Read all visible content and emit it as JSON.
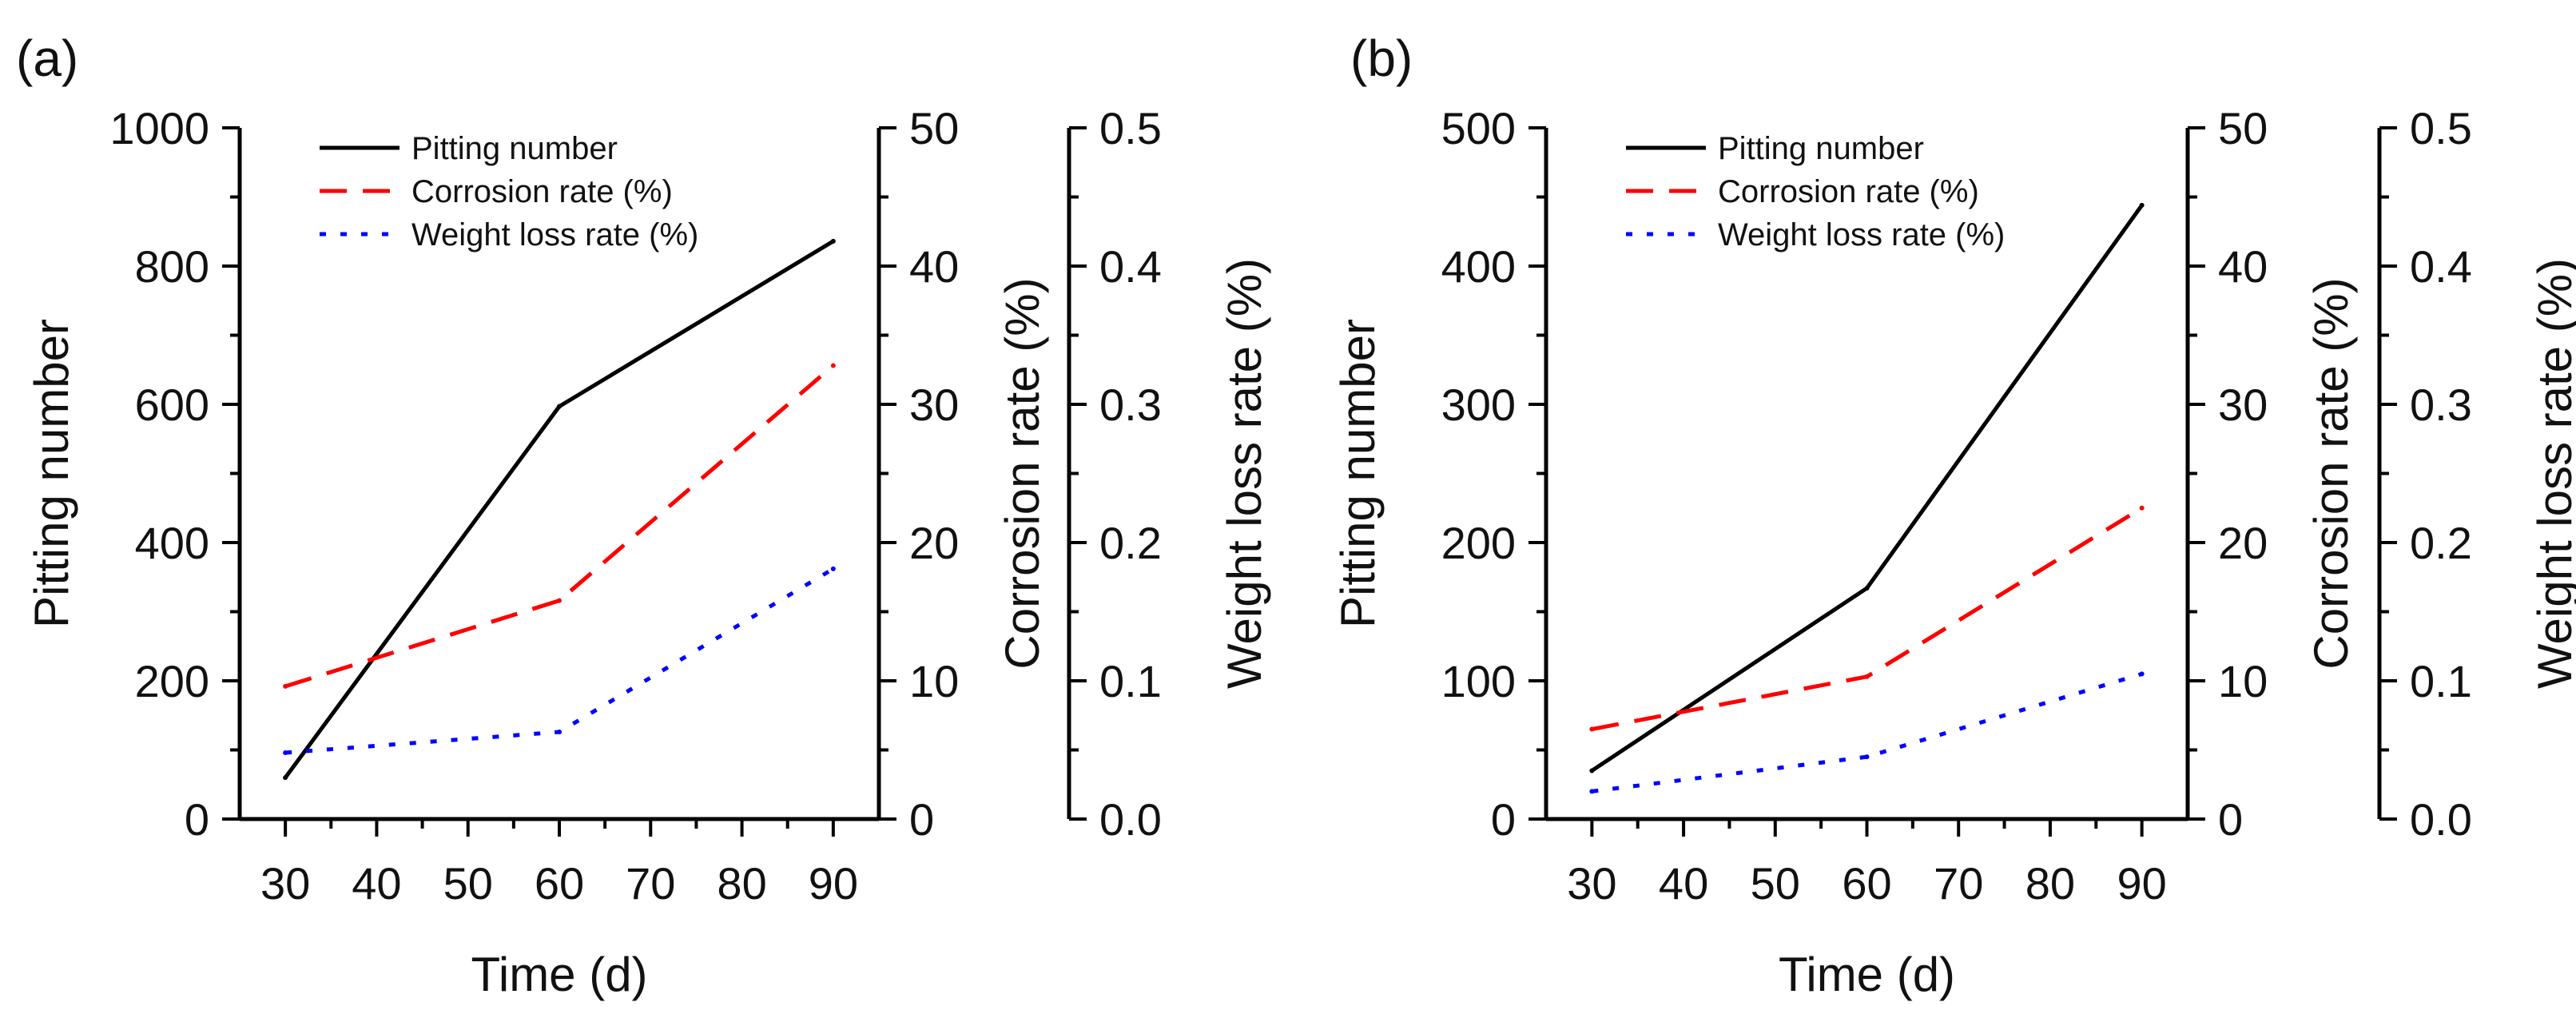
{
  "chart_data": [
    {
      "panel_label": "(a)",
      "type": "line",
      "x": [
        30,
        60,
        90
      ],
      "xlabel": "Time (d)",
      "xticks": [
        30,
        40,
        50,
        60,
        70,
        80,
        90
      ],
      "xlim": [
        25,
        95
      ],
      "series": [
        {
          "name": "Pitting number",
          "axis": "pitting",
          "values": [
            60,
            597,
            836
          ],
          "color": "#000000",
          "style": "solid"
        },
        {
          "name": "Corrosion rate (%)",
          "axis": "corrosion",
          "values": [
            9.6,
            15.8,
            32.8
          ],
          "color": "#ff0000",
          "style": "dashed"
        },
        {
          "name": "Weight loss rate (%)",
          "axis": "weight",
          "values": [
            0.048,
            0.063,
            0.181
          ],
          "color": "#0000ff",
          "style": "dotted"
        }
      ],
      "axes": [
        {
          "key": "pitting",
          "label": "Pitting number",
          "position": "left",
          "ylim": [
            0,
            1000
          ],
          "ticks": [
            "0",
            "200",
            "400",
            "600",
            "800",
            "1000"
          ]
        },
        {
          "key": "corrosion",
          "label": "Corrosion rate (%)",
          "position": "right",
          "ylim": [
            0,
            50
          ],
          "ticks": [
            "0",
            "10",
            "20",
            "30",
            "40",
            "50"
          ]
        },
        {
          "key": "weight",
          "label": "Weight loss rate (%)",
          "position": "right-offset",
          "ylim": [
            0,
            0.5
          ],
          "ticks": [
            "0.0",
            "0.1",
            "0.2",
            "0.3",
            "0.4",
            "0.5"
          ]
        }
      ],
      "legend": {
        "placement": "top-left",
        "entries": [
          "Pitting number",
          "Corrosion rate (%)",
          "Weight loss rate (%)"
        ]
      }
    },
    {
      "panel_label": "(b)",
      "type": "line",
      "x": [
        30,
        60,
        90
      ],
      "xlabel": "Time (d)",
      "xticks": [
        30,
        40,
        50,
        60,
        70,
        80,
        90
      ],
      "xlim": [
        25,
        95
      ],
      "series": [
        {
          "name": "Pitting number",
          "axis": "pitting",
          "values": [
            35,
            167,
            444
          ],
          "color": "#000000",
          "style": "solid"
        },
        {
          "name": "Corrosion rate (%)",
          "axis": "corrosion",
          "values": [
            6.5,
            10.3,
            22.5
          ],
          "color": "#ff0000",
          "style": "dashed"
        },
        {
          "name": "Weight loss rate (%)",
          "axis": "weight",
          "values": [
            0.02,
            0.045,
            0.105
          ],
          "color": "#0000ff",
          "style": "dotted"
        }
      ],
      "axes": [
        {
          "key": "pitting",
          "label": "Pitting number",
          "position": "left",
          "ylim": [
            0,
            500
          ],
          "ticks": [
            "0",
            "100",
            "200",
            "300",
            "400",
            "500"
          ]
        },
        {
          "key": "corrosion",
          "label": "Corrosion rate (%)",
          "position": "right",
          "ylim": [
            0,
            50
          ],
          "ticks": [
            "0",
            "10",
            "20",
            "30",
            "40",
            "50"
          ]
        },
        {
          "key": "weight",
          "label": "Weight loss rate (%)",
          "position": "right-offset",
          "ylim": [
            0,
            0.5
          ],
          "ticks": [
            "0.0",
            "0.1",
            "0.2",
            "0.3",
            "0.4",
            "0.5"
          ]
        }
      ],
      "legend": {
        "placement": "top-left",
        "entries": [
          "Pitting number",
          "Corrosion rate (%)",
          "Weight loss rate (%)"
        ]
      }
    }
  ]
}
